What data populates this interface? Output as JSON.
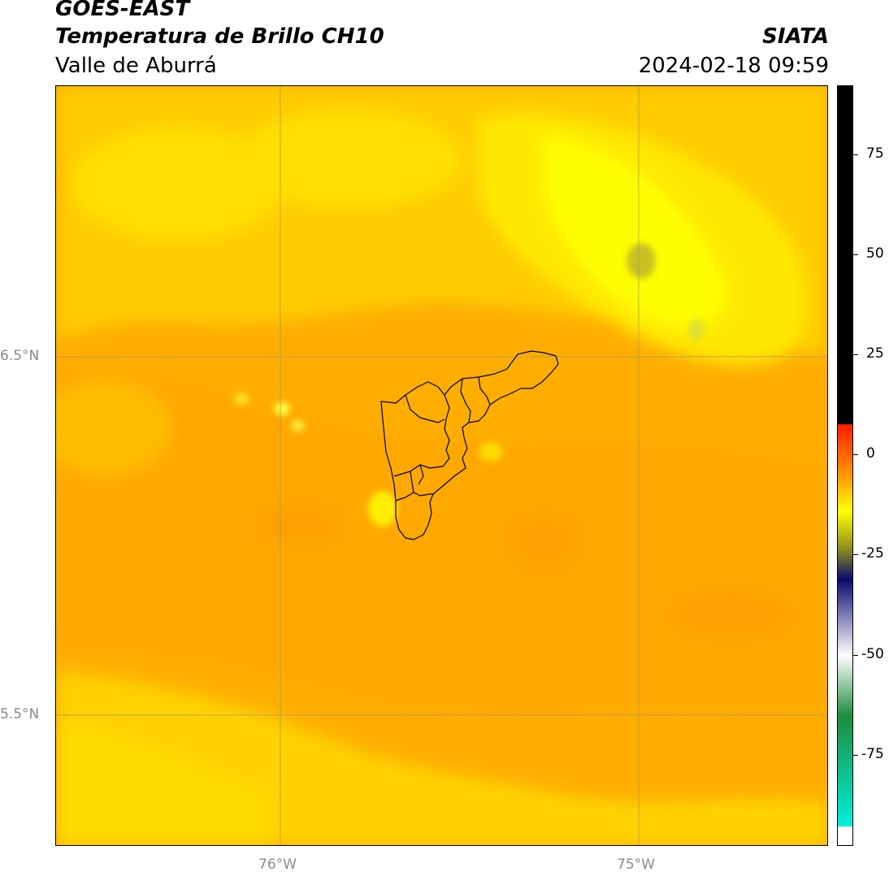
{
  "header": {
    "title_line1": "GOES-EAST",
    "title_line2": "Temperatura de Brillo CH10",
    "region": "Valle de Aburrá",
    "brand": "SIATA",
    "timestamp": "2024-02-18 09:59"
  },
  "map": {
    "latitude_labels": [
      "6.5°N",
      "5.5°N"
    ],
    "longitude_labels": [
      "76°W",
      "75°W"
    ],
    "base_color": "#ffae00",
    "gridlines": true,
    "boundary_color": "#000000"
  },
  "colorbar": {
    "tick_labels": [
      "75",
      "50",
      "25",
      "0",
      "-25",
      "-50",
      "-75"
    ],
    "colors": {
      "black": "#000000",
      "red": "#ff1e00",
      "orange": "#ff9100",
      "yellow": "#ffff00",
      "olive": "#8c8c1e",
      "navy": "#0a0a6e",
      "white": "#ffffff",
      "green": "#1e8c3c",
      "cyan": "#00f0dc"
    }
  }
}
